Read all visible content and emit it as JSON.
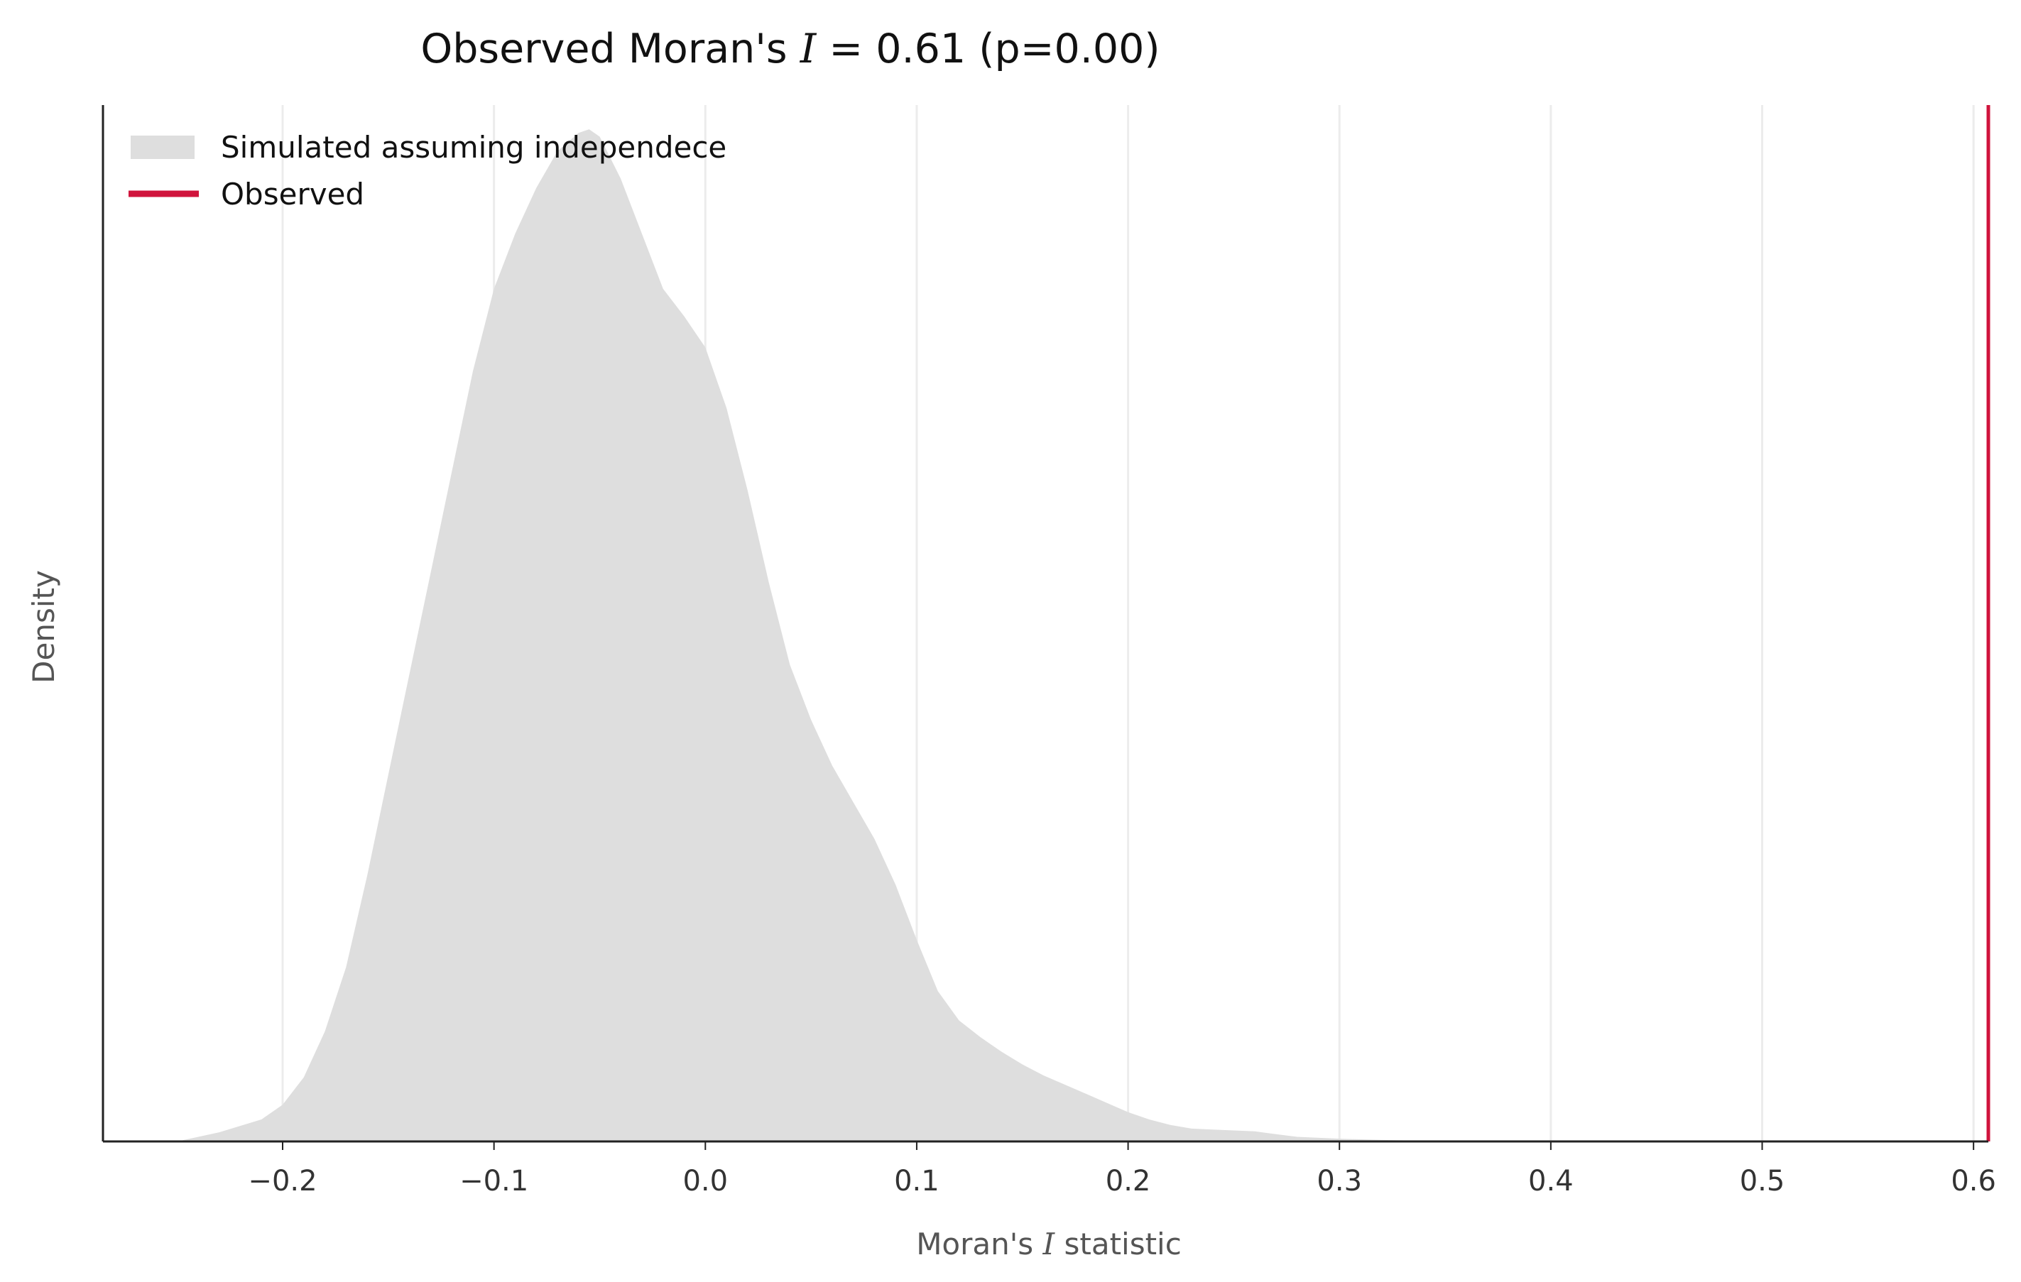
{
  "chart_data": {
    "type": "area",
    "title_parts": {
      "prefix": "Observed Moran's ",
      "symbol": "I",
      "suffix": " = 0.61 (p=0.00)"
    },
    "xlabel_parts": {
      "prefix": "Moran's ",
      "symbol": "I",
      "suffix": " statistic"
    },
    "ylabel": "Density",
    "xlim": [
      -0.285,
      0.607
    ],
    "ylim": [
      0,
      5.2
    ],
    "x_ticks": [
      -0.2,
      -0.1,
      0.0,
      0.1,
      0.2,
      0.3,
      0.4,
      0.5,
      0.6
    ],
    "x_tick_labels": [
      "−0.2",
      "−0.1",
      "0.0",
      "0.1",
      "0.2",
      "0.3",
      "0.4",
      "0.5",
      "0.6"
    ],
    "grid": "vertical",
    "legend_placement": "top-left",
    "legend": [
      {
        "label": "Simulated assuming independece",
        "kind": "patch",
        "color": "#dedede"
      },
      {
        "label": "Observed",
        "kind": "line",
        "color": "#d0143c"
      }
    ],
    "series": [
      {
        "name": "Simulated assuming independece",
        "kind": "density",
        "color": "#dedede",
        "x": [
          -0.25,
          -0.23,
          -0.21,
          -0.2,
          -0.19,
          -0.18,
          -0.17,
          -0.16,
          -0.15,
          -0.14,
          -0.13,
          -0.12,
          -0.11,
          -0.1,
          -0.09,
          -0.08,
          -0.07,
          -0.06,
          -0.055,
          -0.05,
          -0.04,
          -0.03,
          -0.02,
          -0.01,
          0.0,
          0.01,
          0.02,
          0.03,
          0.04,
          0.05,
          0.06,
          0.07,
          0.08,
          0.09,
          0.1,
          0.11,
          0.12,
          0.13,
          0.14,
          0.15,
          0.16,
          0.17,
          0.18,
          0.19,
          0.2,
          0.21,
          0.22,
          0.23,
          0.24,
          0.25,
          0.26,
          0.27,
          0.28,
          0.3,
          0.32,
          0.34,
          0.36
        ],
        "y": [
          0.0,
          0.05,
          0.12,
          0.2,
          0.35,
          0.6,
          0.95,
          1.45,
          2.0,
          2.55,
          3.1,
          3.65,
          4.2,
          4.65,
          4.95,
          5.2,
          5.4,
          5.5,
          5.52,
          5.48,
          5.25,
          4.95,
          4.65,
          4.5,
          4.33,
          4.0,
          3.55,
          3.05,
          2.6,
          2.3,
          2.05,
          1.85,
          1.65,
          1.4,
          1.1,
          0.82,
          0.66,
          0.57,
          0.49,
          0.42,
          0.36,
          0.31,
          0.26,
          0.21,
          0.16,
          0.12,
          0.09,
          0.07,
          0.065,
          0.06,
          0.055,
          0.04,
          0.025,
          0.015,
          0.008,
          0.004,
          0.0
        ]
      },
      {
        "name": "Observed",
        "kind": "vline",
        "color": "#d0143c",
        "x": 0.607
      }
    ]
  }
}
